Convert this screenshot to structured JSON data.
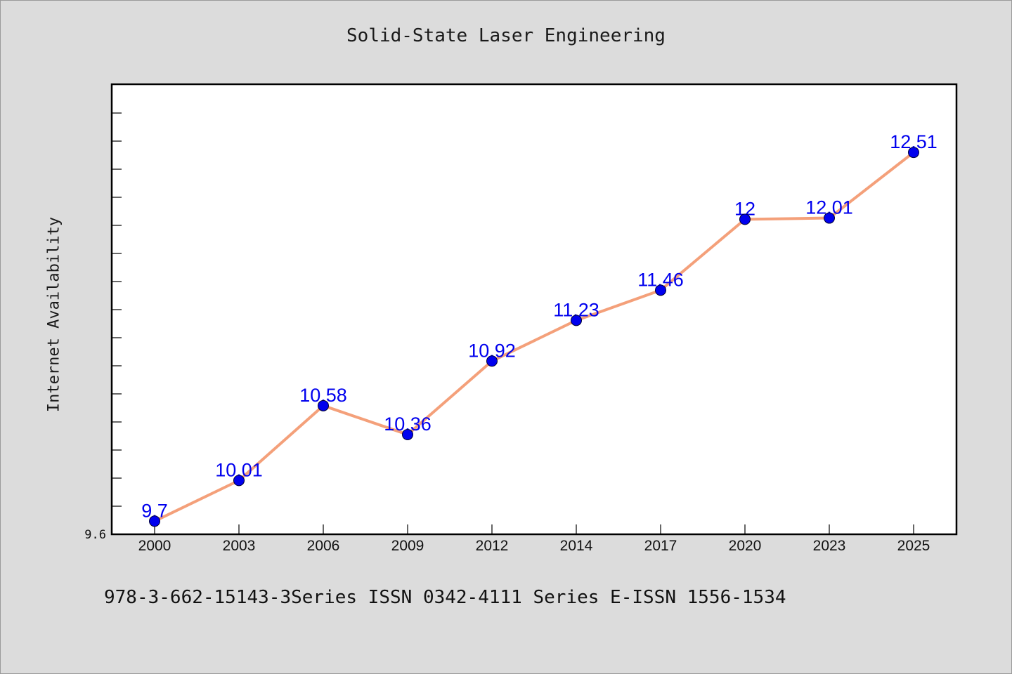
{
  "chart_data": {
    "type": "line",
    "title": "Solid-State Laser Engineering",
    "xlabel": "",
    "ylabel": "Internet Availability",
    "categories": [
      "2000",
      "2003",
      "2006",
      "2009",
      "2012",
      "2014",
      "2017",
      "2020",
      "2023",
      "2025"
    ],
    "series": [
      {
        "values": [
          9.7,
          10.01,
          10.58,
          10.36,
          10.92,
          11.23,
          11.46,
          12,
          12.01,
          12.51
        ],
        "labels": [
          "9.7",
          "10.01",
          "10.58",
          "10.36",
          "10.92",
          "11.23",
          "11.46",
          "12",
          "12.01",
          "12.51"
        ],
        "line_color": "#f4a07a",
        "marker_color": "#0000ee"
      }
    ],
    "ylim": [
      9.6,
      12.81
    ],
    "y_tick_labels": [
      "9.6"
    ],
    "grid": false,
    "legend": "none"
  },
  "footer": "978-3-662-15143-3Series ISSN 0342-4111 Series E-ISSN 1556-1534"
}
